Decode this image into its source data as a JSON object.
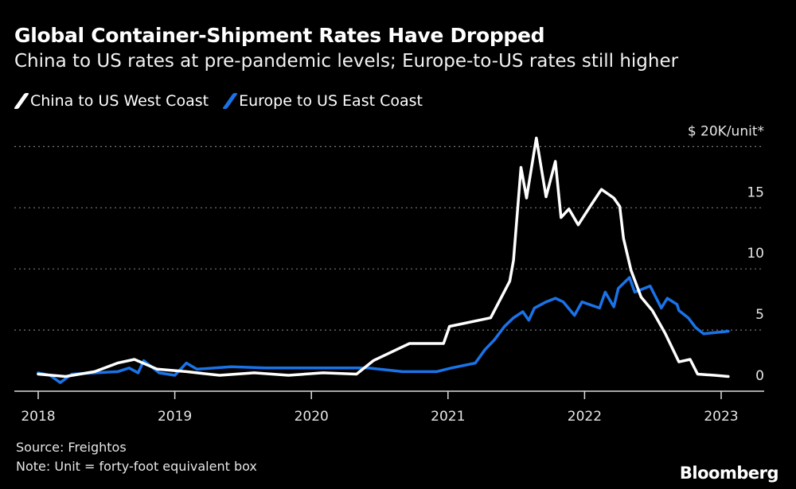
{
  "title": "Global Container-Shipment Rates Have Dropped",
  "subtitle": "China to US rates at pre-pandemic levels; Europe-to-US rates still higher",
  "source": "Source: Freightos",
  "note": "Note: Unit = forty-foot equivalent box",
  "logo": "Bloomberg",
  "chart_data": {
    "type": "line",
    "title": "Global Container-Shipment Rates Have Dropped",
    "ylabel": "$ 20K/unit*",
    "ylim": [
      0,
      20
    ],
    "xlim": [
      "2018-01-01",
      "2023-06-01"
    ],
    "y_ticks": [
      {
        "value": 0,
        "label": "0"
      },
      {
        "value": 5,
        "label": "5"
      },
      {
        "value": 10,
        "label": "10"
      },
      {
        "value": 15,
        "label": "15"
      },
      {
        "value": 20,
        "label": "$ 20K/unit*"
      }
    ],
    "x_ticks": [
      "2018",
      "2019",
      "2020",
      "2021",
      "2022",
      "2023"
    ],
    "grid": true,
    "legend": "top-left",
    "series": [
      {
        "name": "China to US West Coast",
        "color": "#ffffff",
        "points": [
          [
            "2018-01-01",
            1.4
          ],
          [
            "2018-03-15",
            1.2
          ],
          [
            "2018-06-01",
            1.6
          ],
          [
            "2018-08-01",
            2.3
          ],
          [
            "2018-09-15",
            2.6
          ],
          [
            "2018-11-15",
            1.8
          ],
          [
            "2019-02-01",
            1.6
          ],
          [
            "2019-05-01",
            1.3
          ],
          [
            "2019-08-01",
            1.5
          ],
          [
            "2019-11-01",
            1.3
          ],
          [
            "2020-02-01",
            1.5
          ],
          [
            "2020-05-01",
            1.4
          ],
          [
            "2020-06-15",
            2.5
          ],
          [
            "2020-09-20",
            3.9
          ],
          [
            "2020-12-20",
            3.9
          ],
          [
            "2021-01-05",
            5.3
          ],
          [
            "2021-04-25",
            6.0
          ],
          [
            "2021-06-15",
            9.0
          ],
          [
            "2021-06-25",
            10.7
          ],
          [
            "2021-07-15",
            18.3
          ],
          [
            "2021-07-30",
            15.8
          ],
          [
            "2021-08-25",
            20.7
          ],
          [
            "2021-09-20",
            15.9
          ],
          [
            "2021-10-15",
            18.8
          ],
          [
            "2021-10-30",
            14.2
          ],
          [
            "2021-11-20",
            14.9
          ],
          [
            "2021-12-15",
            13.6
          ],
          [
            "2022-01-20",
            15.3
          ],
          [
            "2022-02-15",
            16.5
          ],
          [
            "2022-03-20",
            15.8
          ],
          [
            "2022-04-05",
            15.1
          ],
          [
            "2022-04-15",
            12.5
          ],
          [
            "2022-05-05",
            9.9
          ],
          [
            "2022-06-01",
            7.7
          ],
          [
            "2022-07-01",
            6.6
          ],
          [
            "2022-08-05",
            4.7
          ],
          [
            "2022-09-10",
            2.4
          ],
          [
            "2022-10-10",
            2.6
          ],
          [
            "2022-10-30",
            1.4
          ],
          [
            "2022-12-15",
            1.3
          ],
          [
            "2023-01-20",
            1.2
          ]
        ]
      },
      {
        "name": "Europe to US East Coast",
        "color": "#1a73e8",
        "points": [
          [
            "2018-01-01",
            1.5
          ],
          [
            "2018-02-01",
            1.3
          ],
          [
            "2018-03-01",
            0.7
          ],
          [
            "2018-04-01",
            1.4
          ],
          [
            "2018-08-01",
            1.6
          ],
          [
            "2018-09-01",
            1.9
          ],
          [
            "2018-09-25",
            1.5
          ],
          [
            "2018-10-10",
            2.5
          ],
          [
            "2018-11-20",
            1.5
          ],
          [
            "2019-01-01",
            1.3
          ],
          [
            "2019-02-01",
            2.3
          ],
          [
            "2019-03-01",
            1.8
          ],
          [
            "2019-06-01",
            2.0
          ],
          [
            "2019-09-01",
            1.9
          ],
          [
            "2020-01-01",
            1.9
          ],
          [
            "2020-06-01",
            1.9
          ],
          [
            "2020-09-01",
            1.6
          ],
          [
            "2020-12-01",
            1.6
          ],
          [
            "2021-01-10",
            1.9
          ],
          [
            "2021-03-15",
            2.3
          ],
          [
            "2021-04-10",
            3.4
          ],
          [
            "2021-05-05",
            4.2
          ],
          [
            "2021-06-01",
            5.3
          ],
          [
            "2021-06-25",
            6.0
          ],
          [
            "2021-07-20",
            6.5
          ],
          [
            "2021-08-05",
            5.8
          ],
          [
            "2021-08-20",
            6.8
          ],
          [
            "2021-09-20",
            7.3
          ],
          [
            "2021-10-15",
            7.6
          ],
          [
            "2021-11-05",
            7.3
          ],
          [
            "2021-12-05",
            6.2
          ],
          [
            "2021-12-25",
            7.3
          ],
          [
            "2022-02-10",
            6.8
          ],
          [
            "2022-02-25",
            8.1
          ],
          [
            "2022-03-20",
            6.9
          ],
          [
            "2022-04-01",
            8.4
          ],
          [
            "2022-05-01",
            9.3
          ],
          [
            "2022-05-15",
            8.1
          ],
          [
            "2022-06-25",
            8.6
          ],
          [
            "2022-07-25",
            6.8
          ],
          [
            "2022-08-10",
            7.6
          ],
          [
            "2022-09-05",
            7.1
          ],
          [
            "2022-09-10",
            6.6
          ],
          [
            "2022-10-05",
            6.0
          ],
          [
            "2022-10-25",
            5.2
          ],
          [
            "2022-11-15",
            4.7
          ],
          [
            "2023-01-20",
            4.9
          ]
        ]
      }
    ]
  }
}
